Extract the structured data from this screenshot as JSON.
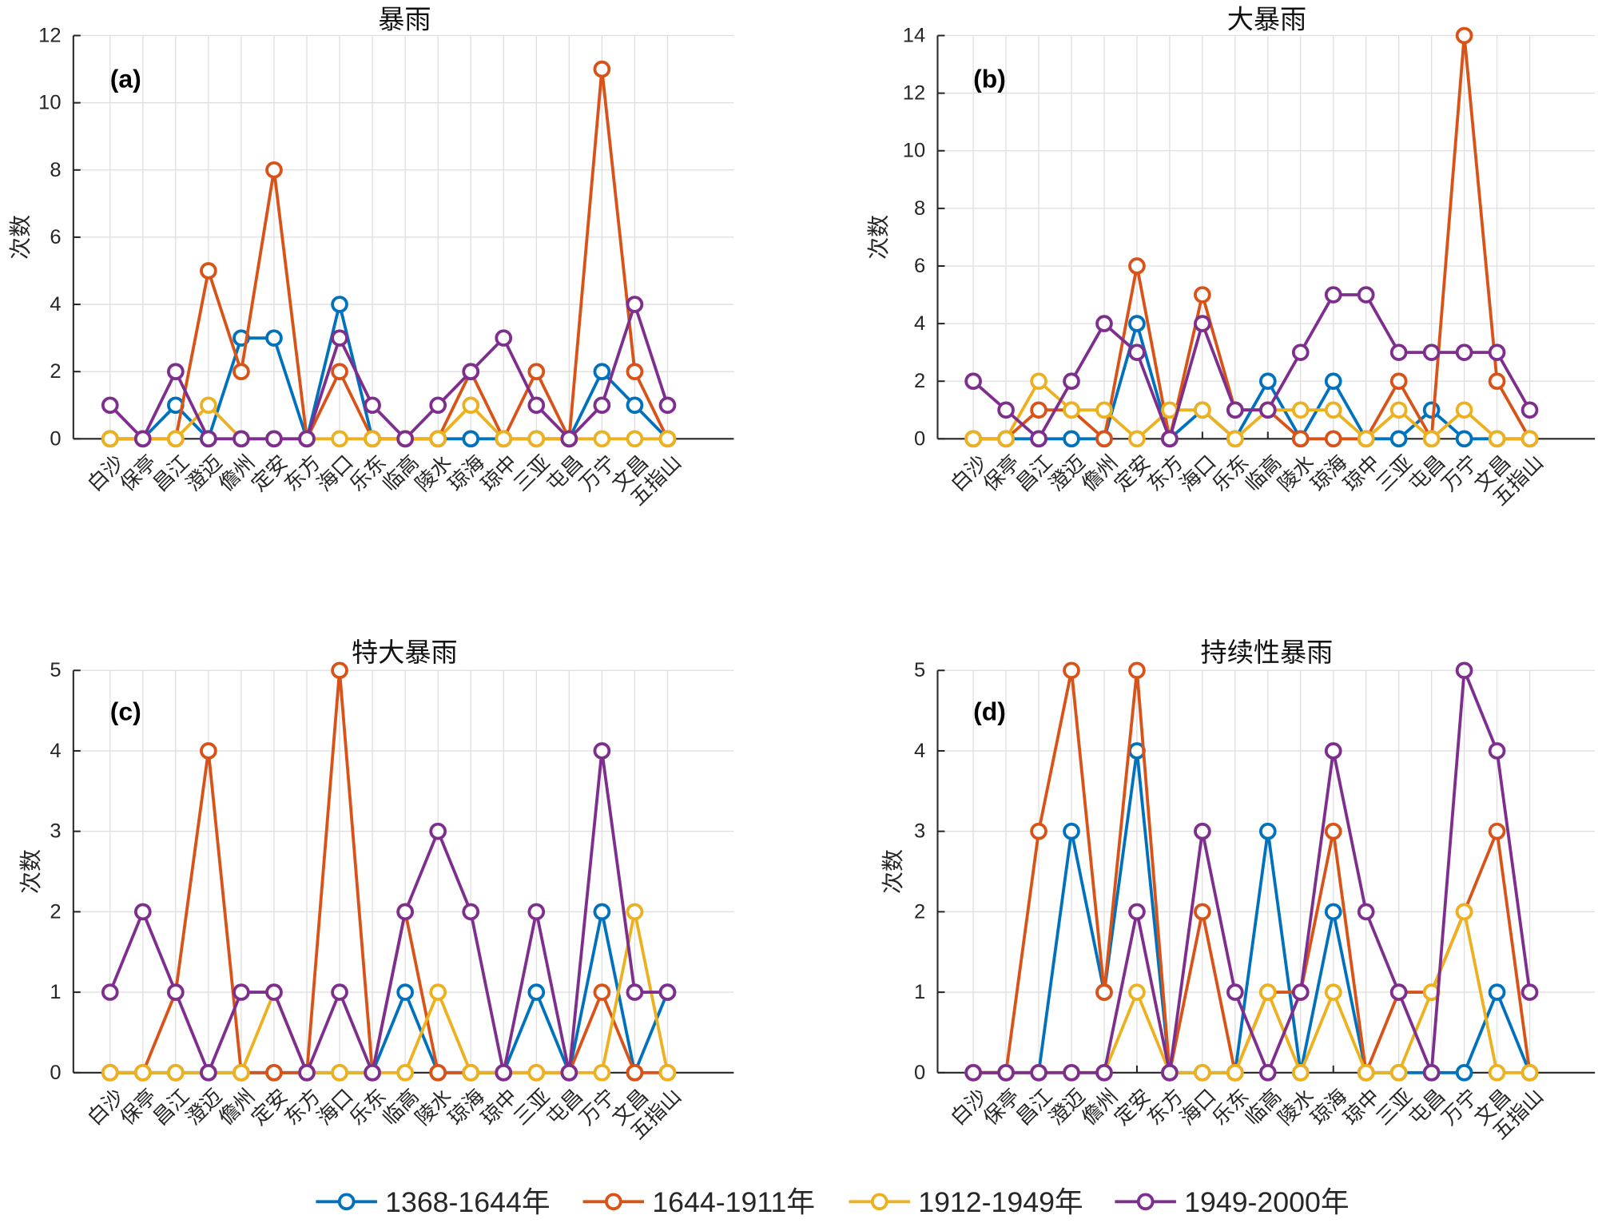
{
  "chart_data": [
    {
      "type": "line",
      "panel": "(a)",
      "title": "暴雨",
      "ylabel": "次数",
      "xlabel": "",
      "ylim": [
        0,
        12
      ],
      "yticks": [
        0,
        2,
        4,
        6,
        8,
        10,
        12
      ],
      "grid": true,
      "categories": [
        "白沙",
        "保亭",
        "昌江",
        "澄迈",
        "儋州",
        "定安",
        "东方",
        "海口",
        "乐东",
        "临高",
        "陵水",
        "琼海",
        "琼中",
        "三亚",
        "屯昌",
        "万宁",
        "文昌",
        "五指山"
      ],
      "series": [
        {
          "name": "1368-1644年",
          "color": "#0072BD",
          "values": [
            0,
            0,
            1,
            0,
            3,
            3,
            0,
            4,
            0,
            0,
            0,
            0,
            0,
            0,
            0,
            2,
            1,
            0
          ]
        },
        {
          "name": "1644-1911年",
          "color": "#D95319",
          "values": [
            0,
            0,
            0,
            5,
            2,
            8,
            0,
            2,
            0,
            0,
            0,
            2,
            0,
            2,
            0,
            11,
            2,
            0
          ]
        },
        {
          "name": "1912-1949年",
          "color": "#EDB120",
          "values": [
            0,
            0,
            0,
            1,
            0,
            0,
            0,
            0,
            0,
            0,
            0,
            1,
            0,
            0,
            0,
            0,
            0,
            0
          ]
        },
        {
          "name": "1949-2000年",
          "color": "#7E2F8E",
          "values": [
            1,
            0,
            2,
            0,
            0,
            0,
            0,
            3,
            1,
            0,
            1,
            2,
            3,
            1,
            0,
            1,
            4,
            1
          ]
        }
      ]
    },
    {
      "type": "line",
      "panel": "(b)",
      "title": "大暴雨",
      "ylabel": "次数",
      "xlabel": "",
      "ylim": [
        0,
        14
      ],
      "yticks": [
        0,
        2,
        4,
        6,
        8,
        10,
        12,
        14
      ],
      "grid": true,
      "categories": [
        "白沙",
        "保亭",
        "昌江",
        "澄迈",
        "儋州",
        "定安",
        "东方",
        "海口",
        "乐东",
        "临高",
        "陵水",
        "琼海",
        "琼中",
        "三亚",
        "屯昌",
        "万宁",
        "文昌",
        "五指山"
      ],
      "series": [
        {
          "name": "1368-1644年",
          "color": "#0072BD",
          "values": [
            0,
            0,
            0,
            0,
            0,
            4,
            0,
            1,
            0,
            2,
            0,
            2,
            0,
            0,
            1,
            0,
            0,
            0
          ]
        },
        {
          "name": "1644-1911年",
          "color": "#D95319",
          "values": [
            0,
            0,
            1,
            1,
            0,
            6,
            0,
            5,
            1,
            1,
            0,
            0,
            0,
            2,
            0,
            14,
            2,
            0
          ]
        },
        {
          "name": "1912-1949年",
          "color": "#EDB120",
          "values": [
            0,
            0,
            2,
            1,
            1,
            0,
            1,
            1,
            0,
            1,
            1,
            1,
            0,
            1,
            0,
            1,
            0,
            0
          ]
        },
        {
          "name": "1949-2000年",
          "color": "#7E2F8E",
          "values": [
            2,
            1,
            0,
            2,
            4,
            3,
            0,
            4,
            1,
            1,
            3,
            5,
            5,
            3,
            3,
            3,
            3,
            1
          ]
        }
      ]
    },
    {
      "type": "line",
      "panel": "(c)",
      "title": "特大暴雨",
      "ylabel": "次数",
      "xlabel": "",
      "ylim": [
        0,
        5
      ],
      "yticks": [
        0,
        1,
        2,
        3,
        4,
        5
      ],
      "grid": true,
      "categories": [
        "白沙",
        "保亭",
        "昌江",
        "澄迈",
        "儋州",
        "定安",
        "东方",
        "海口",
        "乐东",
        "临高",
        "陵水",
        "琼海",
        "琼中",
        "三亚",
        "屯昌",
        "万宁",
        "文昌",
        "五指山"
      ],
      "series": [
        {
          "name": "1368-1644年",
          "color": "#0072BD",
          "values": [
            0,
            0,
            0,
            0,
            0,
            0,
            0,
            0,
            0,
            1,
            0,
            0,
            0,
            1,
            0,
            2,
            0,
            1
          ]
        },
        {
          "name": "1644-1911年",
          "color": "#D95319",
          "values": [
            0,
            0,
            1,
            4,
            0,
            0,
            0,
            5,
            0,
            2,
            0,
            0,
            0,
            0,
            0,
            1,
            0,
            0
          ]
        },
        {
          "name": "1912-1949年",
          "color": "#EDB120",
          "values": [
            0,
            0,
            0,
            0,
            0,
            1,
            0,
            0,
            0,
            0,
            1,
            0,
            0,
            0,
            0,
            0,
            2,
            0
          ]
        },
        {
          "name": "1949-2000年",
          "color": "#7E2F8E",
          "values": [
            1,
            2,
            1,
            0,
            1,
            1,
            0,
            1,
            0,
            2,
            3,
            2,
            0,
            2,
            0,
            4,
            1,
            1
          ]
        }
      ]
    },
    {
      "type": "line",
      "panel": "(d)",
      "title": "持续性暴雨",
      "ylabel": "次数",
      "xlabel": "",
      "ylim": [
        0,
        5
      ],
      "yticks": [
        0,
        1,
        2,
        3,
        4,
        5
      ],
      "grid": true,
      "categories": [
        "白沙",
        "保亭",
        "昌江",
        "澄迈",
        "儋州",
        "定安",
        "东方",
        "海口",
        "乐东",
        "临高",
        "陵水",
        "琼海",
        "琼中",
        "三亚",
        "屯昌",
        "万宁",
        "文昌",
        "五指山"
      ],
      "series": [
        {
          "name": "1368-1644年",
          "color": "#0072BD",
          "values": [
            0,
            0,
            0,
            3,
            1,
            4,
            0,
            0,
            0,
            3,
            0,
            2,
            0,
            0,
            0,
            0,
            1,
            0
          ]
        },
        {
          "name": "1644-1911年",
          "color": "#D95319",
          "values": [
            0,
            0,
            3,
            5,
            1,
            5,
            0,
            2,
            0,
            1,
            1,
            3,
            0,
            1,
            1,
            2,
            3,
            0
          ]
        },
        {
          "name": "1912-1949年",
          "color": "#EDB120",
          "values": [
            0,
            0,
            0,
            0,
            0,
            1,
            0,
            0,
            0,
            1,
            0,
            1,
            0,
            0,
            1,
            2,
            0,
            0
          ]
        },
        {
          "name": "1949-2000年",
          "color": "#7E2F8E",
          "values": [
            0,
            0,
            0,
            0,
            0,
            2,
            0,
            3,
            1,
            0,
            1,
            4,
            2,
            1,
            0,
            5,
            4,
            1
          ]
        }
      ]
    }
  ],
  "legend": {
    "placement": "bottom-center"
  }
}
